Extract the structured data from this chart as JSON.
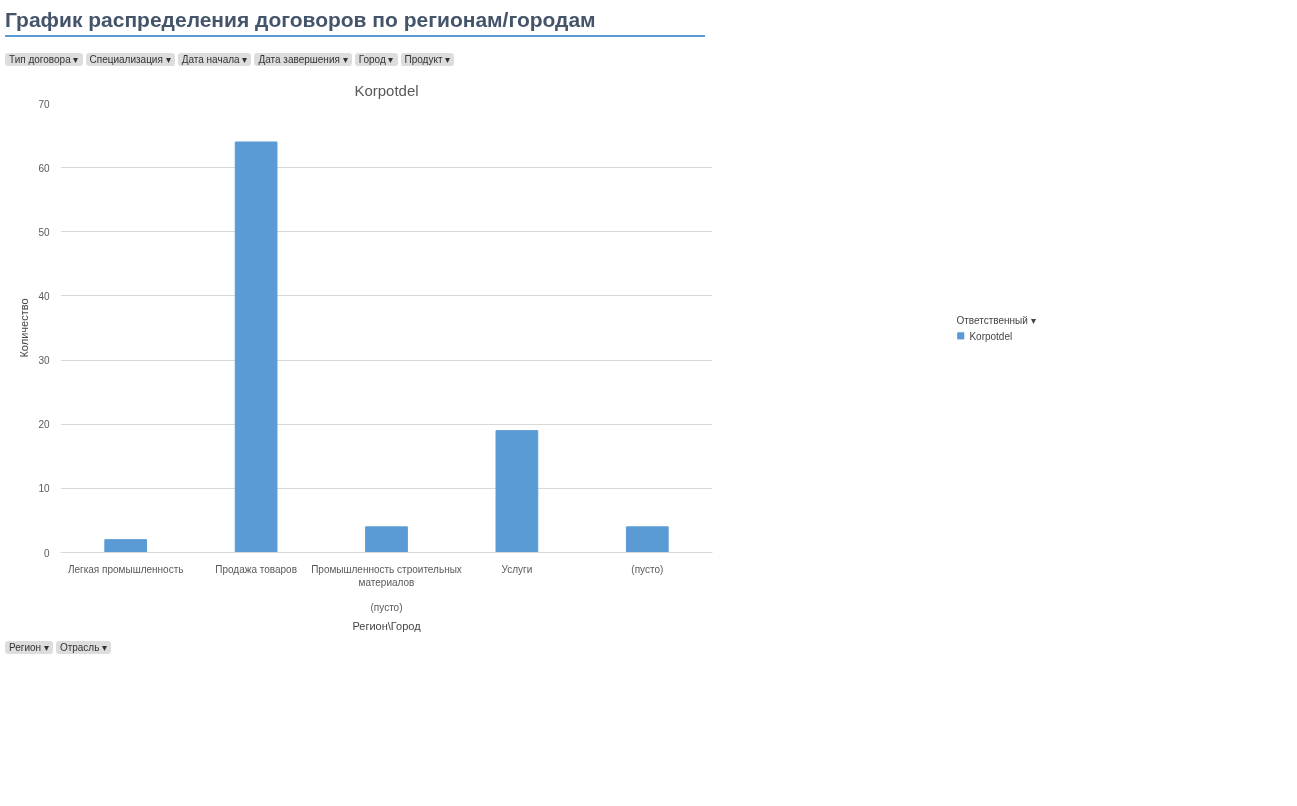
{
  "chart_data": {
    "type": "bar",
    "title": "График распределения договоров по регионам/городам",
    "subtitle": "Korpotdel",
    "xlabel": "Регион\\Город",
    "ylabel": "Количество",
    "legend_title": "Ответственный ▾",
    "categories": [
      "Легкая промышленность",
      "Продажа товаров",
      "Промышленность строительных материалов",
      "Услуги",
      "(пусто)"
    ],
    "series": [
      {
        "name": "Korpotdel",
        "color": "#5b9bd5",
        "values": [
          2,
          64,
          4,
          19,
          4
        ]
      }
    ],
    "ylim": [
      0,
      70
    ],
    "yticks": [
      0,
      10,
      20,
      30,
      40,
      50,
      60,
      70
    ],
    "grid": "y",
    "legend": "right",
    "annotations": [
      "Тип договора ▾",
      "Специализация ▾",
      "Дата начала ▾",
      "Дата завершения ▾",
      "Город ▾",
      "Продукт ▾",
      "(пусто)",
      "Регион ▾",
      "Отрасль ▾"
    ]
  }
}
